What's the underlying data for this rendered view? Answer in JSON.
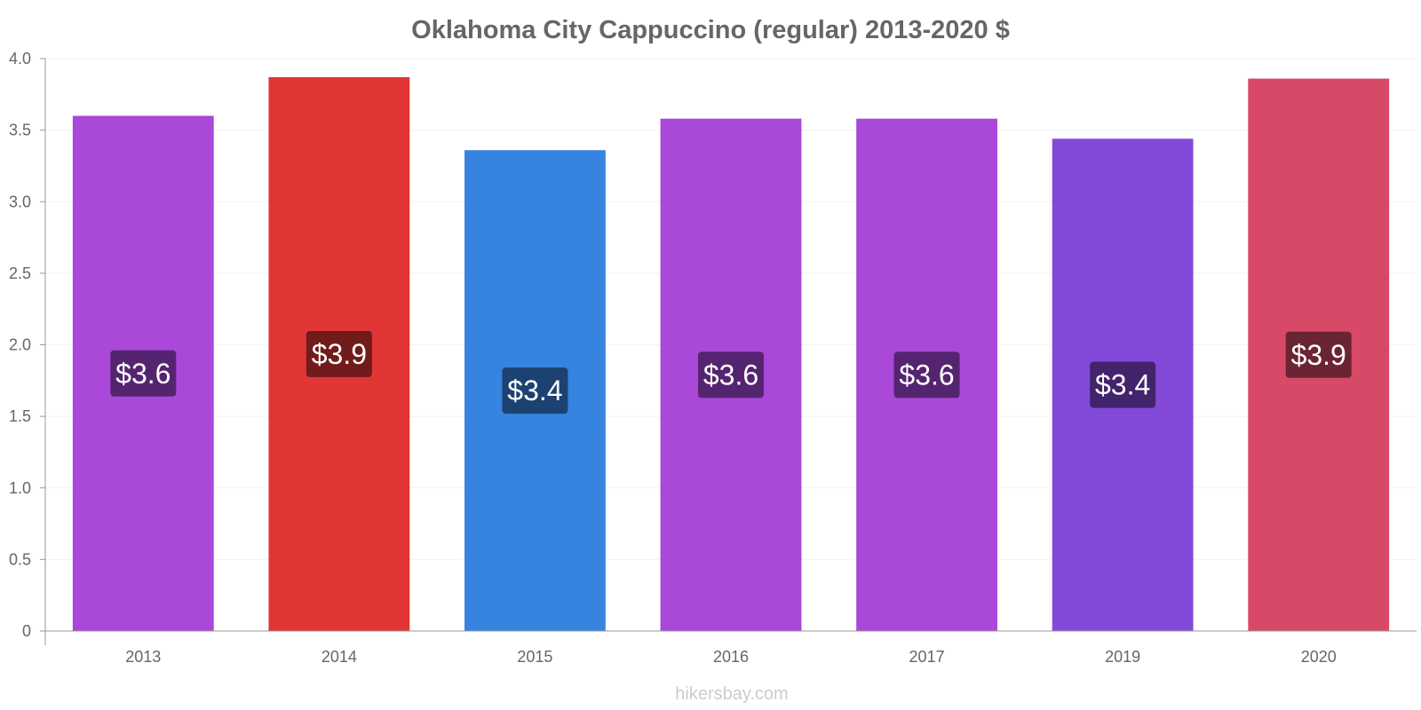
{
  "chart_data": {
    "type": "bar",
    "title": "Oklahoma City Cappuccino (regular) 2013-2020 $",
    "xlabel": "",
    "ylabel": "",
    "categories": [
      "2013",
      "2014",
      "2015",
      "2016",
      "2017",
      "2019",
      "2020"
    ],
    "values": [
      3.6,
      3.87,
      3.36,
      3.58,
      3.58,
      3.44,
      3.86
    ],
    "data_labels": [
      "$3.6",
      "$3.9",
      "$3.4",
      "$3.6",
      "$3.6",
      "$3.4",
      "$3.9"
    ],
    "bar_colors": [
      "#a948d9",
      "#e23535",
      "#3684e0",
      "#a948d9",
      "#a948d9",
      "#8249d9",
      "#d74966"
    ],
    "label_colors": [
      "#552470",
      "#711b1b",
      "#1b4270",
      "#552470",
      "#552470",
      "#41246c",
      "#6b2433"
    ],
    "ylim": [
      0,
      4.0
    ],
    "yticks": [
      "0",
      "0.5",
      "1.0",
      "1.5",
      "2.0",
      "2.5",
      "3.0",
      "3.5",
      "4.0"
    ],
    "grid": true,
    "legend": "none"
  },
  "watermark": "hikersbay.com"
}
